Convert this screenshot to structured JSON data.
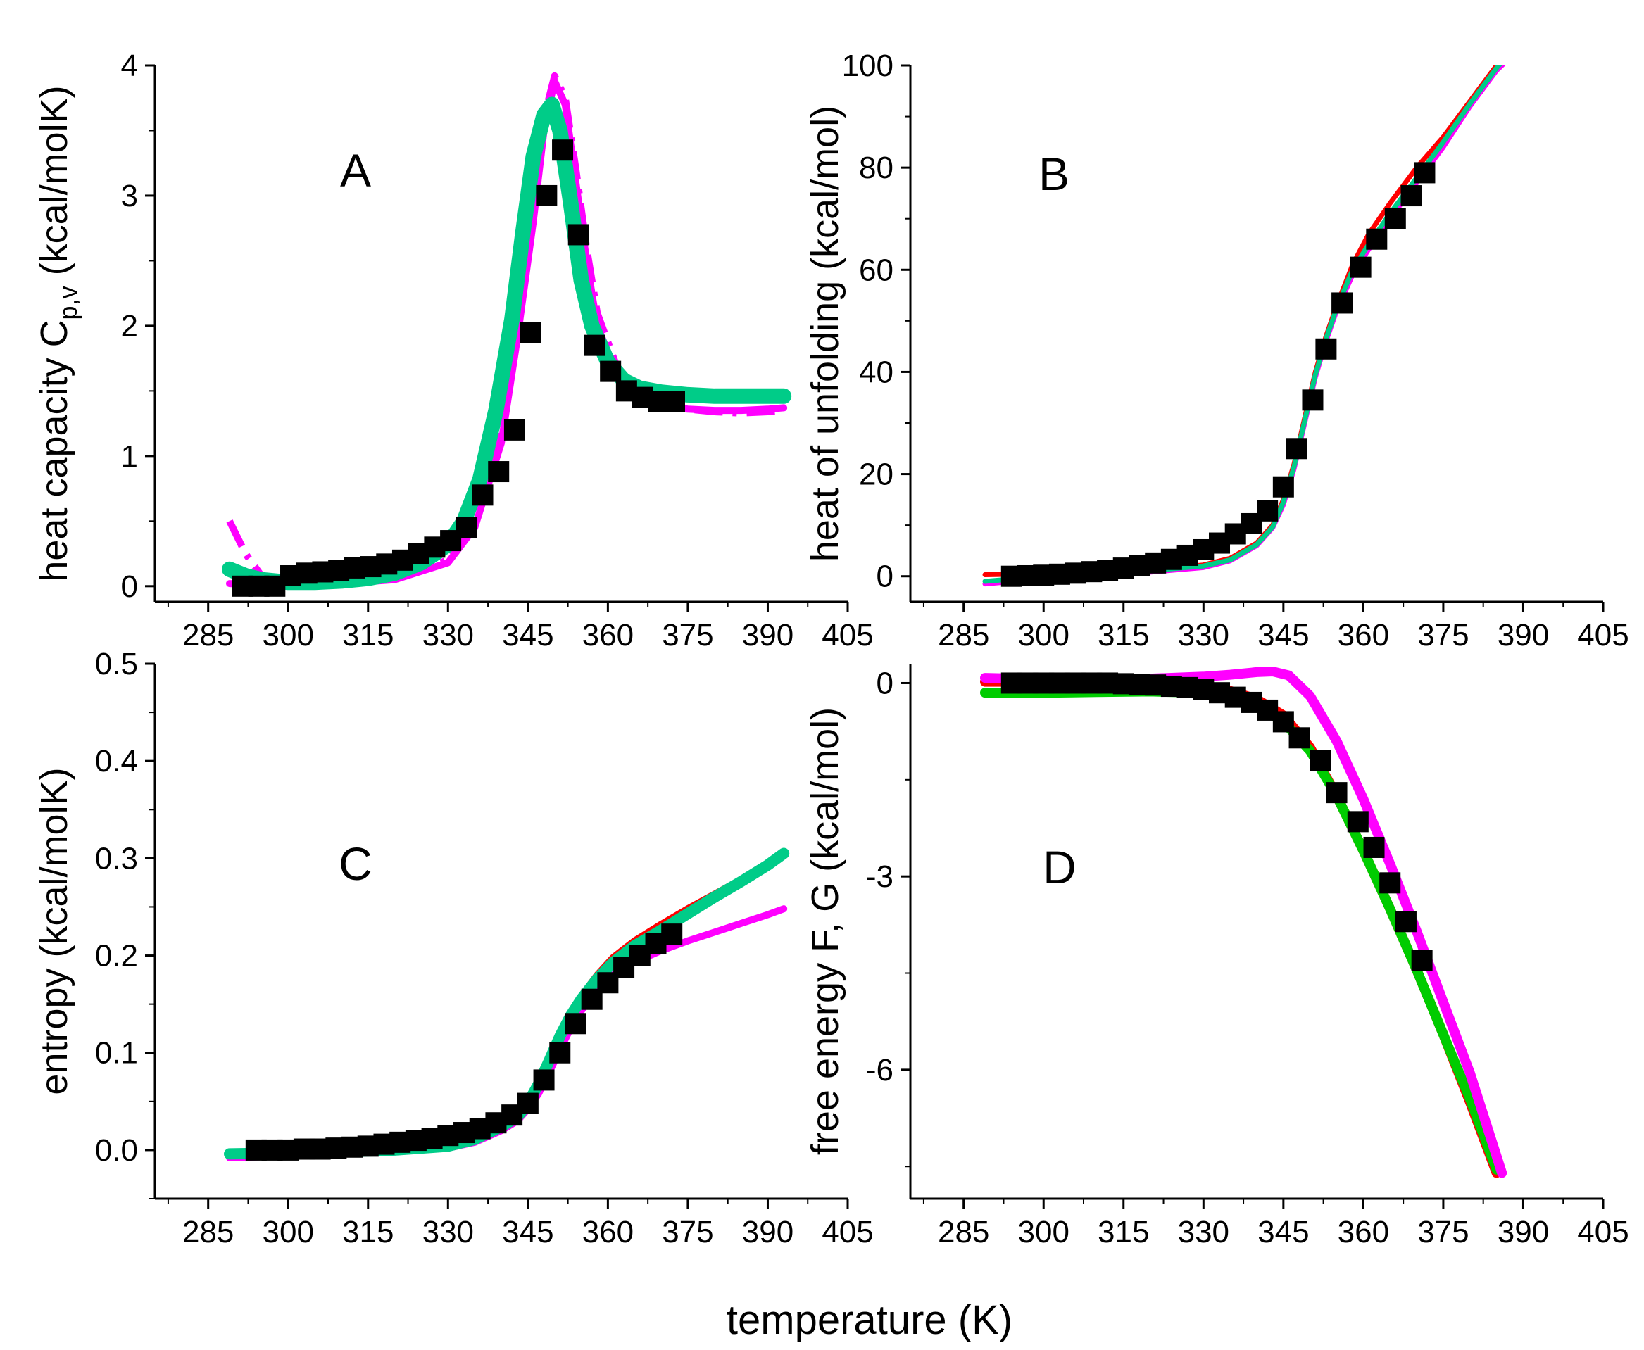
{
  "figure": {
    "common_xlabel": "temperature (K)"
  },
  "chart_data": [
    {
      "panel_label": "A",
      "type": "line",
      "ylabel_main": "heat capacity C",
      "ylabel_sub": "p,v",
      "ylabel_tail": " (kcal/molK)",
      "xlim": [
        275,
        405
      ],
      "ylim": [
        -0.12,
        4
      ],
      "xticks": [
        285,
        300,
        315,
        330,
        345,
        360,
        375,
        390,
        405
      ],
      "yticks": [
        0,
        1,
        2,
        3,
        4
      ],
      "series": [
        {
          "color": "#ff00ff",
          "style": "dashdot",
          "x": [
            289,
            292,
            295,
            300,
            310,
            320,
            330,
            335,
            340,
            343,
            346,
            348,
            350,
            352,
            354,
            356,
            358,
            362,
            366,
            370,
            375,
            380,
            385,
            390,
            393
          ],
          "y": [
            0.5,
            0.25,
            0.08,
            0.03,
            0.03,
            0.06,
            0.2,
            0.5,
            1.2,
            2.0,
            2.9,
            3.6,
            3.92,
            3.75,
            3.2,
            2.6,
            2.1,
            1.65,
            1.5,
            1.42,
            1.36,
            1.34,
            1.33,
            1.34,
            1.35
          ]
        },
        {
          "color": "#ff00ff",
          "style": "solid",
          "x": [
            289,
            295,
            300,
            310,
            320,
            330,
            335,
            340,
            343,
            346,
            348,
            350,
            352,
            354,
            356,
            358,
            362,
            366,
            370,
            375,
            380,
            385,
            390,
            393
          ],
          "y": [
            0.02,
            0.01,
            0.01,
            0.02,
            0.05,
            0.18,
            0.45,
            1.1,
            1.9,
            2.8,
            3.5,
            3.88,
            3.7,
            3.1,
            2.5,
            2.0,
            1.6,
            1.47,
            1.4,
            1.36,
            1.35,
            1.35,
            1.36,
            1.37
          ]
        },
        {
          "color": "#00cc88",
          "style": "solid",
          "x": [
            289,
            292,
            295,
            300,
            305,
            310,
            315,
            320,
            325,
            330,
            333,
            336,
            339,
            342,
            344,
            346,
            348,
            349.5,
            351,
            353,
            355,
            357,
            360,
            363,
            366,
            370,
            375,
            380,
            385,
            390,
            393
          ],
          "y": [
            0.13,
            0.08,
            0.05,
            0.03,
            0.03,
            0.04,
            0.06,
            0.1,
            0.18,
            0.32,
            0.5,
            0.82,
            1.35,
            2.05,
            2.7,
            3.3,
            3.62,
            3.7,
            3.5,
            2.95,
            2.35,
            2.0,
            1.72,
            1.58,
            1.52,
            1.49,
            1.47,
            1.46,
            1.46,
            1.46,
            1.46
          ]
        },
        {
          "color": "#000000",
          "style": "markers",
          "x": [
            291.5,
            294.5,
            297.5,
            300.5,
            303.5,
            306.5,
            309.5,
            312.5,
            315.5,
            318.5,
            321.5,
            324.5,
            327.5,
            330.5,
            333.5,
            336.5,
            339.5,
            342.5,
            345.5,
            348.5,
            351.5,
            354.5,
            357.5,
            360.5,
            363.5,
            366.5,
            369.5,
            372.5
          ],
          "y": [
            0.0,
            0.0,
            0.0,
            0.08,
            0.1,
            0.11,
            0.12,
            0.14,
            0.15,
            0.17,
            0.2,
            0.25,
            0.3,
            0.35,
            0.45,
            0.7,
            0.88,
            1.2,
            1.95,
            3.0,
            3.35,
            2.7,
            1.85,
            1.65,
            1.5,
            1.45,
            1.42,
            1.42
          ]
        }
      ]
    },
    {
      "panel_label": "B",
      "type": "line",
      "ylabel": "heat of unfolding (kcal/mol)",
      "xlim": [
        275,
        405
      ],
      "ylim": [
        -5,
        100
      ],
      "xticks": [
        285,
        300,
        315,
        330,
        345,
        360,
        375,
        390,
        405
      ],
      "yticks": [
        0,
        20,
        40,
        60,
        80,
        100
      ],
      "series": [
        {
          "color": "#ff0000",
          "style": "solid",
          "x": [
            289,
            300,
            310,
            320,
            330,
            335,
            340,
            343,
            345,
            347,
            349,
            351,
            353,
            355,
            358,
            361,
            365,
            370,
            375,
            380,
            385,
            388
          ],
          "y": [
            0.3,
            0.5,
            0.8,
            1.3,
            2.2,
            3.5,
            6.5,
            10,
            15,
            22,
            31,
            40,
            47,
            53,
            61,
            67,
            73,
            80,
            86,
            93,
            100,
            104
          ]
        },
        {
          "color": "#ff00ff",
          "style": "solid",
          "x": [
            289,
            300,
            310,
            320,
            330,
            335,
            340,
            343,
            345,
            347,
            349,
            351,
            353,
            355,
            358,
            361,
            365,
            370,
            375,
            380,
            385,
            388
          ],
          "y": [
            -1.5,
            -0.5,
            0.2,
            0.8,
            1.7,
            3,
            6,
            9.5,
            14,
            21,
            30,
            39,
            46,
            52,
            59,
            64,
            70,
            77,
            84,
            92,
            99,
            102
          ]
        },
        {
          "color": "#00cc88",
          "style": "solid",
          "x": [
            289,
            300,
            310,
            320,
            330,
            335,
            340,
            343,
            345,
            347,
            349,
            351,
            353,
            355,
            358,
            361,
            365,
            370,
            375,
            380,
            385,
            388
          ],
          "y": [
            -1,
            0,
            0.5,
            1.1,
            2,
            3.2,
            6.2,
            9.7,
            14.5,
            21.5,
            30.5,
            39.5,
            46.5,
            52.5,
            60,
            65,
            71,
            78,
            85,
            92.5,
            99.5,
            103
          ]
        },
        {
          "color": "#000000",
          "style": "markers",
          "x": [
            294,
            297,
            300,
            303,
            306,
            309,
            312,
            315,
            318,
            321,
            324,
            327,
            330,
            333,
            336,
            339,
            342,
            345,
            347.5,
            350.5,
            353,
            356,
            359.5,
            362.5,
            366,
            369,
            371.5
          ],
          "y": [
            0,
            0.1,
            0.2,
            0.4,
            0.6,
            0.9,
            1.2,
            1.6,
            2.1,
            2.6,
            3.3,
            4.1,
            5.2,
            6.5,
            8.3,
            10.3,
            12.8,
            17.5,
            25,
            34.5,
            44.5,
            53.5,
            60.5,
            66,
            70,
            74.5,
            79
          ]
        }
      ]
    },
    {
      "panel_label": "C",
      "type": "line",
      "ylabel": "entropy (kcal/molK)",
      "xlim": [
        275,
        405
      ],
      "ylim": [
        -0.05,
        0.5
      ],
      "xticks": [
        285,
        300,
        315,
        330,
        345,
        360,
        375,
        390,
        405
      ],
      "yticks": [
        0.0,
        0.1,
        0.2,
        0.3,
        0.4,
        0.5
      ],
      "ytick_labels": [
        "0.0",
        "0.1",
        "0.2",
        "0.3",
        "0.4",
        "0.5"
      ],
      "series": [
        {
          "color": "#ff0000",
          "style": "solid",
          "x": [
            289,
            300,
            310,
            320,
            330,
            335,
            340,
            343,
            345,
            347,
            349,
            351,
            353,
            355,
            358,
            361,
            365,
            370,
            375,
            380,
            385,
            390,
            393
          ],
          "y": [
            -0.005,
            -0.004,
            -0.002,
            0.0,
            0.005,
            0.012,
            0.025,
            0.035,
            0.05,
            0.07,
            0.095,
            0.12,
            0.14,
            0.158,
            0.18,
            0.198,
            0.215,
            0.232,
            0.248,
            0.263,
            0.278,
            0.295,
            0.307
          ]
        },
        {
          "color": "#ff00ff",
          "style": "solid",
          "x": [
            289,
            300,
            310,
            320,
            330,
            335,
            340,
            343,
            345,
            347,
            349,
            351,
            353,
            355,
            358,
            361,
            365,
            370,
            375,
            380,
            385,
            390,
            393
          ],
          "y": [
            -0.008,
            -0.006,
            -0.004,
            -0.002,
            0.002,
            0.008,
            0.02,
            0.03,
            0.042,
            0.058,
            0.08,
            0.103,
            0.125,
            0.143,
            0.165,
            0.18,
            0.193,
            0.205,
            0.215,
            0.224,
            0.233,
            0.242,
            0.248
          ]
        },
        {
          "color": "#00cc88",
          "style": "solid",
          "x": [
            289,
            300,
            310,
            320,
            330,
            335,
            340,
            343,
            345,
            347,
            349,
            351,
            353,
            355,
            358,
            361,
            365,
            370,
            375,
            380,
            385,
            390,
            393
          ],
          "y": [
            -0.004,
            -0.003,
            -0.002,
            0.0,
            0.004,
            0.011,
            0.024,
            0.034,
            0.048,
            0.068,
            0.092,
            0.117,
            0.138,
            0.155,
            0.176,
            0.193,
            0.21,
            0.226,
            0.243,
            0.26,
            0.276,
            0.293,
            0.305
          ]
        },
        {
          "color": "#000000",
          "style": "markers",
          "x": [
            294,
            297,
            300,
            303,
            306,
            309,
            312,
            315,
            318,
            321,
            324,
            327,
            330,
            333,
            336,
            339,
            342,
            345,
            348,
            351,
            354,
            357,
            360,
            363,
            366,
            369,
            372
          ],
          "y": [
            0,
            0,
            0,
            0.001,
            0.001,
            0.002,
            0.003,
            0.004,
            0.006,
            0.008,
            0.01,
            0.012,
            0.015,
            0.018,
            0.022,
            0.028,
            0.036,
            0.048,
            0.072,
            0.1,
            0.13,
            0.155,
            0.172,
            0.188,
            0.2,
            0.212,
            0.222
          ]
        }
      ]
    },
    {
      "panel_label": "D",
      "type": "line",
      "ylabel": "free energy F, G (kcal/mol)",
      "xlim": [
        275,
        405
      ],
      "ylim": [
        -8,
        0.3
      ],
      "xticks": [
        285,
        300,
        315,
        330,
        345,
        360,
        375,
        390,
        405
      ],
      "yticks": [
        0,
        -3,
        -6
      ],
      "series": [
        {
          "color": "#ff0000",
          "style": "solid",
          "x": [
            289,
            300,
            310,
            320,
            330,
            335,
            340,
            345,
            350,
            355,
            360,
            365,
            370,
            375,
            380,
            385
          ],
          "y": [
            0.02,
            0.02,
            0.01,
            0.0,
            -0.05,
            -0.12,
            -0.25,
            -0.5,
            -1.0,
            -1.75,
            -2.6,
            -3.5,
            -4.45,
            -5.45,
            -6.5,
            -7.6
          ]
        },
        {
          "color": "#00cc00",
          "style": "solid",
          "x": [
            289,
            300,
            310,
            320,
            330,
            335,
            340,
            345,
            350,
            355,
            360,
            365,
            370,
            375,
            380,
            385
          ],
          "y": [
            -0.15,
            -0.15,
            -0.14,
            -0.13,
            -0.15,
            -0.22,
            -0.35,
            -0.6,
            -1.05,
            -1.75,
            -2.6,
            -3.5,
            -4.45,
            -5.45,
            -6.45,
            -7.55
          ]
        },
        {
          "color": "#ff00ff",
          "style": "solid",
          "x": [
            289,
            300,
            310,
            320,
            330,
            335,
            340,
            343,
            346,
            350,
            355,
            360,
            365,
            370,
            375,
            380,
            386
          ],
          "y": [
            0.08,
            0.06,
            0.06,
            0.07,
            0.1,
            0.13,
            0.17,
            0.18,
            0.12,
            -0.2,
            -0.9,
            -1.8,
            -2.8,
            -3.85,
            -4.95,
            -6.05,
            -7.6
          ]
        },
        {
          "color": "#000000",
          "style": "markers",
          "x": [
            294,
            297,
            300,
            303,
            306,
            309,
            312,
            315,
            318,
            321,
            324,
            327,
            330,
            333,
            336,
            339,
            342,
            345,
            348,
            352,
            355,
            359,
            362,
            365,
            368,
            371
          ],
          "y": [
            0,
            0,
            0,
            0,
            0,
            0,
            0,
            -0.01,
            -0.02,
            -0.03,
            -0.05,
            -0.07,
            -0.1,
            -0.15,
            -0.22,
            -0.3,
            -0.42,
            -0.6,
            -0.85,
            -1.2,
            -1.7,
            -2.15,
            -2.55,
            -3.1,
            -3.7,
            -4.3
          ]
        }
      ]
    }
  ]
}
